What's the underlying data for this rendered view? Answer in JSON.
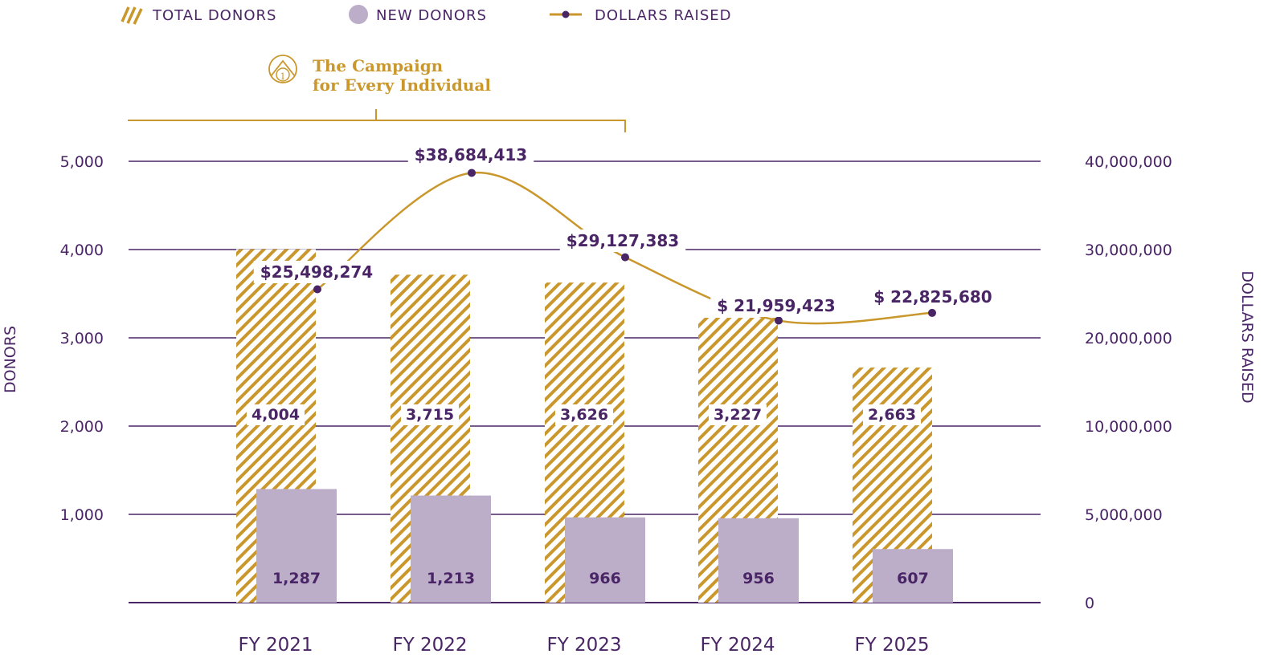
{
  "legend": {
    "total_donors": "TOTAL DONORS",
    "new_donors": "NEW DONORS",
    "dollars_raised": "DOLLARS RAISED"
  },
  "annotation": {
    "campaign_line1": "The Campaign",
    "campaign_line2": "for Every Individual",
    "icon": "campaign-logo-icon",
    "spans_categories": [
      "FY 2021",
      "FY 2022",
      "FY 2023"
    ]
  },
  "colors": {
    "gold": "#c9972b",
    "purple": "#4a2566",
    "lilac": "#bcadc9",
    "grid": "#4a2566"
  },
  "chart_data": {
    "type": "bar",
    "title": "",
    "xlabel": "",
    "ylabel": "DONORS",
    "y2label": "DOLLARS RAISED",
    "ylim": [
      0,
      5000
    ],
    "y2lim": [
      0,
      40000000
    ],
    "grid": true,
    "legend_position": "top-left",
    "categories": [
      "FY 2021",
      "FY 2022",
      "FY 2023",
      "FY 2024",
      "FY 2025"
    ],
    "yticks": [
      "1,000",
      "2,000",
      "3,000",
      "4,000",
      "5,000"
    ],
    "yticks_values": [
      1000,
      2000,
      3000,
      4000,
      5000
    ],
    "y2ticks": [
      "0",
      "5,000,000",
      "10,000,000",
      "20,000,000",
      "30,000,000",
      "40,000,000"
    ],
    "series": [
      {
        "name": "TOTAL DONORS",
        "type": "bar",
        "style": "hatched",
        "values": [
          4004,
          3715,
          3626,
          3227,
          2663
        ],
        "labels": [
          "4,004",
          "3,715",
          "3,626",
          "3,227",
          "2,663"
        ]
      },
      {
        "name": "NEW DONORS",
        "type": "bar",
        "style": "solid",
        "values": [
          1287,
          1213,
          966,
          956,
          607
        ],
        "labels": [
          "1,287",
          "1,213",
          "966",
          "956",
          "607"
        ]
      },
      {
        "name": "DOLLARS RAISED",
        "type": "line",
        "axis": "right",
        "values": [
          25498274,
          38684413,
          29127383,
          21959423,
          22825680
        ],
        "labels": [
          "$25,498,274",
          "$38,684,413",
          "$29,127,383",
          "$ 21,959,423",
          "$ 22,825,680"
        ]
      }
    ]
  }
}
